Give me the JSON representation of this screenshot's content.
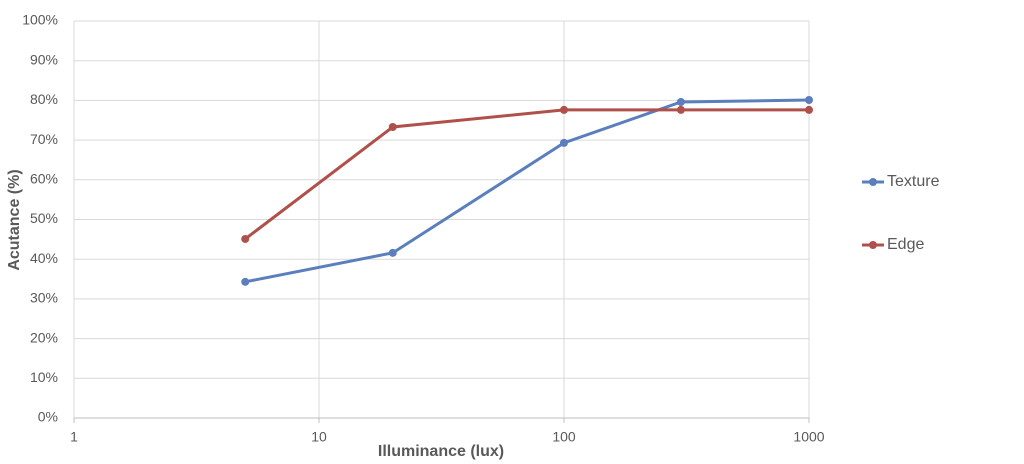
{
  "chart_data": {
    "type": "line",
    "x_label": "Illuminance (lux)",
    "y_label": "Acutance (%)",
    "xscale": "log",
    "grid": true,
    "legend": "right",
    "x": [
      5,
      20,
      100,
      300,
      1000
    ],
    "series": [
      {
        "name": "Texture",
        "color": "#5b7fbd",
        "values": [
          34.3,
          41.6,
          69.3,
          79.6,
          80.1
        ]
      },
      {
        "name": "Edge",
        "color": "#b0504a",
        "values": [
          45.1,
          73.3,
          77.6,
          77.6,
          77.6
        ]
      }
    ],
    "xlim": [
      1,
      1000
    ],
    "xticks": [
      1,
      10,
      100,
      1000
    ],
    "ylim": [
      0,
      100
    ],
    "yticks": [
      {
        "value": 0,
        "label": "0%"
      },
      {
        "value": 10,
        "label": "10%"
      },
      {
        "value": 20,
        "label": "20%"
      },
      {
        "value": 30,
        "label": "30%"
      },
      {
        "value": 40,
        "label": "40%"
      },
      {
        "value": 50,
        "label": "50%"
      },
      {
        "value": 60,
        "label": "60%"
      },
      {
        "value": 70,
        "label": "70%"
      },
      {
        "value": 80,
        "label": "80%"
      },
      {
        "value": 90,
        "label": "90%"
      },
      {
        "value": 100,
        "label": "100%"
      }
    ]
  }
}
